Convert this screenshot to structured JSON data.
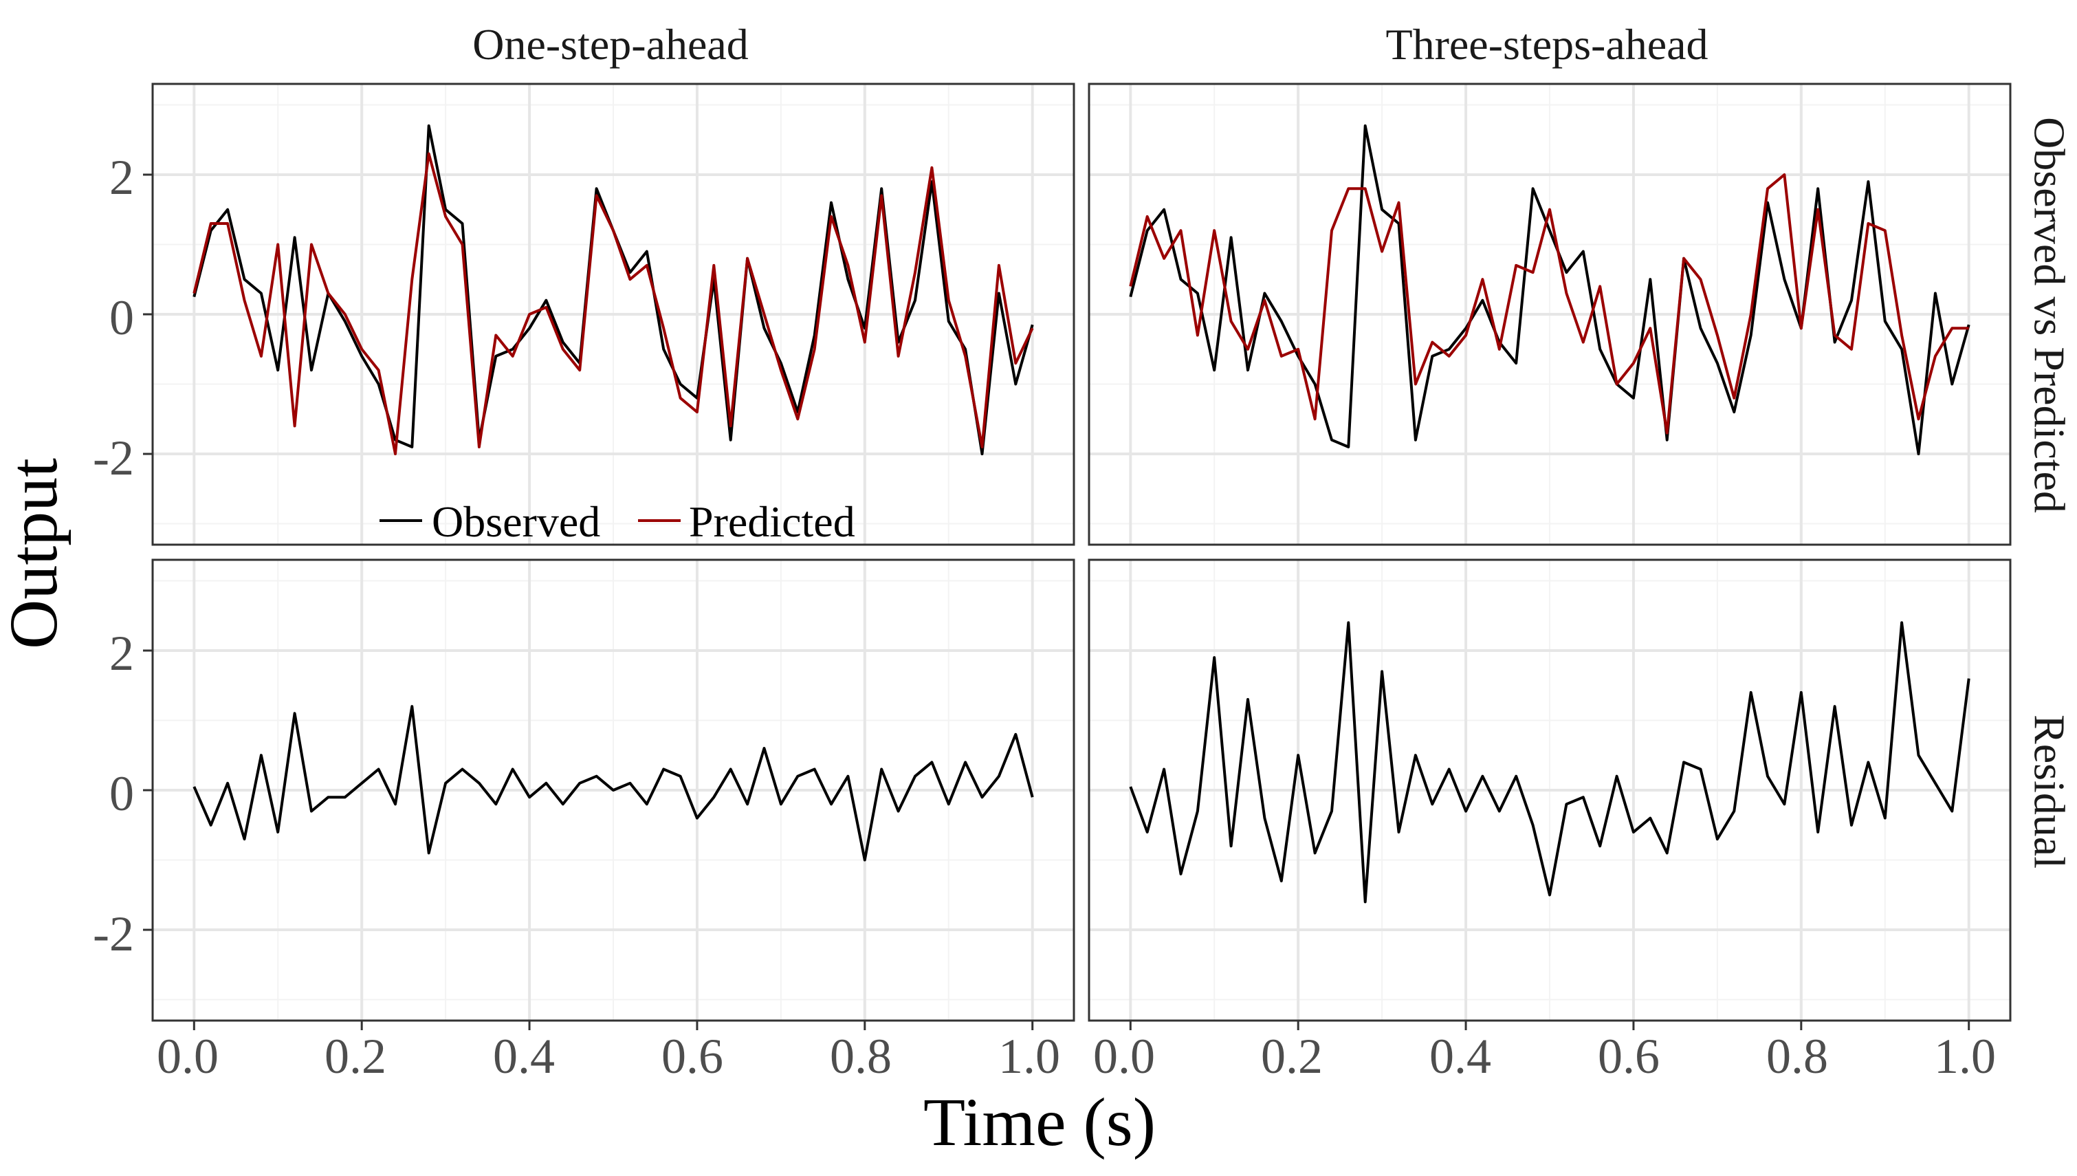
{
  "chart_data": {
    "type": "line",
    "xlabel": "Time (s)",
    "ylabel": "Output",
    "xlim": [
      0.0,
      1.0
    ],
    "ylim": [
      -3.3,
      3.3
    ],
    "x_ticks": [
      "0.0",
      "0.2",
      "0.4",
      "0.6",
      "0.8",
      "1.0"
    ],
    "y_ticks": [
      "2",
      "0",
      "-2"
    ],
    "column_titles": [
      "One-step-ahead",
      "Three-steps-ahead"
    ],
    "row_titles": [
      "Observed vs Predicted",
      "Residual"
    ],
    "legend": {
      "placement": "bottom-center of top-left panel",
      "entries": [
        {
          "name": "Observed",
          "color": "#000000"
        },
        {
          "name": "Predicted",
          "color": "#9b0000"
        }
      ]
    },
    "x": [
      0.0,
      0.02,
      0.04,
      0.06,
      0.08,
      0.1,
      0.12,
      0.14,
      0.16,
      0.18,
      0.2,
      0.22,
      0.24,
      0.26,
      0.28,
      0.3,
      0.32,
      0.34,
      0.36,
      0.38,
      0.4,
      0.42,
      0.44,
      0.46,
      0.48,
      0.5,
      0.52,
      0.54,
      0.56,
      0.58,
      0.6,
      0.62,
      0.64,
      0.66,
      0.68,
      0.7,
      0.72,
      0.74,
      0.76,
      0.78,
      0.8,
      0.82,
      0.84,
      0.86,
      0.88,
      0.9,
      0.92,
      0.94,
      0.96,
      0.98,
      1.0
    ],
    "panels": [
      {
        "column": "One-step-ahead",
        "row": "Observed vs Predicted",
        "series": [
          {
            "name": "Observed",
            "color": "#000000",
            "values": [
              0.25,
              1.2,
              1.5,
              0.5,
              0.3,
              -0.8,
              1.1,
              -0.8,
              0.3,
              -0.1,
              -0.6,
              -1.0,
              -1.8,
              -1.9,
              2.7,
              1.5,
              1.3,
              -1.8,
              -0.6,
              -0.5,
              -0.2,
              0.2,
              -0.4,
              -0.7,
              1.8,
              1.2,
              0.6,
              0.9,
              -0.5,
              -1.0,
              -1.2,
              0.5,
              -1.8,
              0.8,
              -0.2,
              -0.7,
              -1.4,
              -0.3,
              1.6,
              0.5,
              -0.2,
              1.8,
              -0.4,
              0.2,
              1.9,
              -0.1,
              -0.5,
              -2.0,
              0.3,
              -1.0,
              -0.15
            ]
          },
          {
            "name": "Predicted",
            "color": "#9b0000",
            "values": [
              0.3,
              1.3,
              1.3,
              0.2,
              -0.6,
              1.0,
              -1.6,
              1.0,
              0.3,
              0.0,
              -0.5,
              -0.8,
              -2.0,
              0.5,
              2.3,
              1.4,
              1.0,
              -1.9,
              -0.3,
              -0.6,
              0.0,
              0.1,
              -0.5,
              -0.8,
              1.7,
              1.2,
              0.5,
              0.7,
              -0.2,
              -1.2,
              -1.4,
              0.7,
              -1.6,
              0.8,
              0.0,
              -0.8,
              -1.5,
              -0.5,
              1.4,
              0.7,
              -0.4,
              1.7,
              -0.6,
              0.6,
              2.1,
              0.2,
              -0.6,
              -1.9,
              0.7,
              -0.7,
              -0.2
            ]
          }
        ]
      },
      {
        "column": "Three-steps-ahead",
        "row": "Observed vs Predicted",
        "series": [
          {
            "name": "Observed",
            "color": "#000000",
            "values": [
              0.25,
              1.2,
              1.5,
              0.5,
              0.3,
              -0.8,
              1.1,
              -0.8,
              0.3,
              -0.1,
              -0.6,
              -1.0,
              -1.8,
              -1.9,
              2.7,
              1.5,
              1.3,
              -1.8,
              -0.6,
              -0.5,
              -0.2,
              0.2,
              -0.4,
              -0.7,
              1.8,
              1.2,
              0.6,
              0.9,
              -0.5,
              -1.0,
              -1.2,
              0.5,
              -1.8,
              0.8,
              -0.2,
              -0.7,
              -1.4,
              -0.3,
              1.6,
              0.5,
              -0.2,
              1.8,
              -0.4,
              0.2,
              1.9,
              -0.1,
              -0.5,
              -2.0,
              0.3,
              -1.0,
              -0.15
            ]
          },
          {
            "name": "Predicted",
            "color": "#9b0000",
            "values": [
              0.4,
              1.4,
              0.8,
              1.2,
              -0.3,
              1.2,
              -0.1,
              -0.5,
              0.2,
              -0.6,
              -0.5,
              -1.5,
              1.2,
              1.8,
              1.8,
              0.9,
              1.6,
              -1.0,
              -0.4,
              -0.6,
              -0.3,
              0.5,
              -0.5,
              0.7,
              0.6,
              1.5,
              0.3,
              -0.4,
              0.4,
              -1.0,
              -0.7,
              -0.2,
              -1.7,
              0.8,
              0.5,
              -0.3,
              -1.2,
              0.0,
              1.8,
              2.0,
              -0.2,
              1.5,
              -0.3,
              -0.5,
              1.3,
              1.2,
              -0.3,
              -1.5,
              -0.6,
              -0.2,
              -0.2
            ]
          }
        ]
      },
      {
        "column": "One-step-ahead",
        "row": "Residual",
        "series": [
          {
            "name": "Residual",
            "color": "#000000",
            "values": [
              0.05,
              -0.5,
              0.1,
              -0.7,
              0.5,
              -0.6,
              1.1,
              -0.3,
              -0.1,
              -0.1,
              0.1,
              0.3,
              -0.2,
              1.2,
              -0.9,
              0.1,
              0.3,
              0.1,
              -0.2,
              0.3,
              -0.1,
              0.1,
              -0.2,
              0.1,
              0.2,
              0.0,
              0.1,
              -0.2,
              0.3,
              0.2,
              -0.4,
              -0.1,
              0.3,
              -0.2,
              0.6,
              -0.2,
              0.2,
              0.3,
              -0.2,
              0.2,
              -1.0,
              0.3,
              -0.3,
              0.2,
              0.4,
              -0.2,
              0.4,
              -0.1,
              0.2,
              0.8,
              -0.1
            ]
          }
        ]
      },
      {
        "column": "Three-steps-ahead",
        "row": "Residual",
        "series": [
          {
            "name": "Residual",
            "color": "#000000",
            "values": [
              0.05,
              -0.6,
              0.3,
              -1.2,
              -0.3,
              1.9,
              -0.8,
              1.3,
              -0.4,
              -1.3,
              0.5,
              -0.9,
              -0.3,
              2.4,
              -1.6,
              1.7,
              -0.6,
              0.5,
              -0.2,
              0.3,
              -0.3,
              0.2,
              -0.3,
              0.2,
              -0.5,
              -1.5,
              -0.2,
              -0.1,
              -0.8,
              0.2,
              -0.6,
              -0.4,
              -0.9,
              0.4,
              0.3,
              -0.7,
              -0.3,
              1.4,
              0.2,
              -0.2,
              1.4,
              -0.6,
              1.2,
              -0.5,
              0.4,
              -0.4,
              2.4,
              0.5,
              0.1,
              -0.3,
              1.6
            ]
          }
        ]
      }
    ]
  }
}
